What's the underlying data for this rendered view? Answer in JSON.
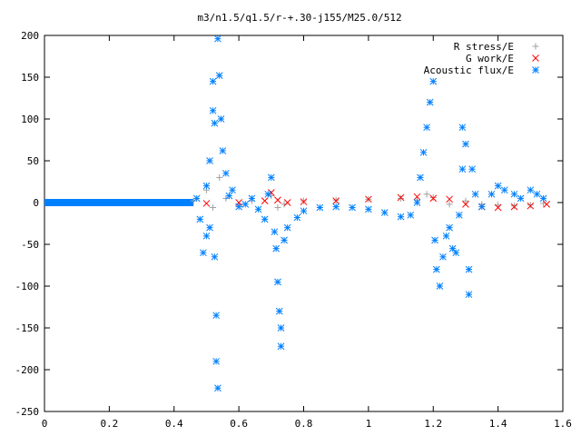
{
  "chart_data": {
    "type": "scatter",
    "title": "m3/n1.5/q1.5/r-+.30-j155/M25.0/512",
    "xlabel": "",
    "ylabel": "",
    "xlim": [
      0,
      1.6
    ],
    "ylim": [
      -250,
      200
    ],
    "grid": false,
    "legend_position": "top-right",
    "x_ticks": [
      "0",
      "0.2",
      "0.4",
      "0.6",
      "0.8",
      "1",
      "1.2",
      "1.4",
      "1.6"
    ],
    "y_ticks": [
      "200",
      "150",
      "100",
      "50",
      "0",
      "-50",
      "-100",
      "-150",
      "-200",
      "-250"
    ],
    "series": [
      {
        "name": "R stress/E",
        "color": "#a0a0a0",
        "marker": "plus",
        "points": [
          [
            0.46,
            2
          ],
          [
            0.5,
            15
          ],
          [
            0.52,
            -6
          ],
          [
            0.54,
            30
          ],
          [
            0.56,
            5
          ],
          [
            0.6,
            -3
          ],
          [
            0.64,
            2
          ],
          [
            0.7,
            8
          ],
          [
            0.72,
            -6
          ],
          [
            0.74,
            -2
          ],
          [
            0.8,
            2
          ],
          [
            0.9,
            3
          ],
          [
            1.0,
            4
          ],
          [
            1.1,
            5
          ],
          [
            1.15,
            3
          ],
          [
            1.18,
            10
          ],
          [
            1.2,
            6
          ],
          [
            1.25,
            -2
          ],
          [
            1.3,
            2
          ],
          [
            1.35,
            -2
          ],
          [
            1.4,
            -3
          ],
          [
            1.45,
            -4
          ],
          [
            1.5,
            -3
          ],
          [
            1.54,
            -1
          ]
        ]
      },
      {
        "name": "G work/E",
        "color": "#ff0000",
        "marker": "cross",
        "points": [
          [
            0.5,
            -1
          ],
          [
            0.6,
            0
          ],
          [
            0.68,
            2
          ],
          [
            0.7,
            12
          ],
          [
            0.72,
            3
          ],
          [
            0.75,
            0
          ],
          [
            0.8,
            1
          ],
          [
            0.9,
            2
          ],
          [
            1.0,
            4
          ],
          [
            1.1,
            6
          ],
          [
            1.15,
            7
          ],
          [
            1.2,
            5
          ],
          [
            1.25,
            4
          ],
          [
            1.3,
            -2
          ],
          [
            1.35,
            -5
          ],
          [
            1.4,
            -6
          ],
          [
            1.45,
            -5
          ],
          [
            1.5,
            -4
          ],
          [
            1.55,
            -2
          ]
        ]
      },
      {
        "name": "Acoustic flux/E",
        "color": "#0080ff",
        "marker": "star",
        "points": [
          [
            0.47,
            5
          ],
          [
            0.48,
            -20
          ],
          [
            0.49,
            -60
          ],
          [
            0.5,
            20
          ],
          [
            0.5,
            -40
          ],
          [
            0.51,
            50
          ],
          [
            0.51,
            -30
          ],
          [
            0.52,
            145
          ],
          [
            0.52,
            110
          ],
          [
            0.525,
            95
          ],
          [
            0.525,
            -65
          ],
          [
            0.53,
            -135
          ],
          [
            0.53,
            -190
          ],
          [
            0.535,
            -222
          ],
          [
            0.535,
            196
          ],
          [
            0.54,
            152
          ],
          [
            0.545,
            100
          ],
          [
            0.55,
            62
          ],
          [
            0.56,
            35
          ],
          [
            0.57,
            8
          ],
          [
            0.58,
            15
          ],
          [
            0.6,
            -5
          ],
          [
            0.62,
            -2
          ],
          [
            0.64,
            5
          ],
          [
            0.66,
            -8
          ],
          [
            0.68,
            -20
          ],
          [
            0.69,
            10
          ],
          [
            0.7,
            30
          ],
          [
            0.71,
            -35
          ],
          [
            0.715,
            -55
          ],
          [
            0.72,
            -95
          ],
          [
            0.725,
            -130
          ],
          [
            0.73,
            -150
          ],
          [
            0.73,
            -172
          ],
          [
            0.74,
            -45
          ],
          [
            0.75,
            -30
          ],
          [
            0.78,
            -18
          ],
          [
            0.8,
            -10
          ],
          [
            0.85,
            -6
          ],
          [
            0.9,
            -5
          ],
          [
            0.95,
            -6
          ],
          [
            1.0,
            -8
          ],
          [
            1.05,
            -12
          ],
          [
            1.1,
            -17
          ],
          [
            1.13,
            -15
          ],
          [
            1.15,
            0
          ],
          [
            1.16,
            30
          ],
          [
            1.17,
            60
          ],
          [
            1.18,
            90
          ],
          [
            1.19,
            120
          ],
          [
            1.2,
            145
          ],
          [
            1.205,
            -45
          ],
          [
            1.21,
            -80
          ],
          [
            1.22,
            -100
          ],
          [
            1.23,
            -65
          ],
          [
            1.24,
            -40
          ],
          [
            1.25,
            -30
          ],
          [
            1.26,
            -55
          ],
          [
            1.27,
            -60
          ],
          [
            1.28,
            -15
          ],
          [
            1.29,
            40
          ],
          [
            1.29,
            90
          ],
          [
            1.3,
            70
          ],
          [
            1.31,
            -110
          ],
          [
            1.31,
            -80
          ],
          [
            1.32,
            40
          ],
          [
            1.33,
            10
          ],
          [
            1.35,
            -5
          ],
          [
            1.38,
            10
          ],
          [
            1.4,
            20
          ],
          [
            1.42,
            15
          ],
          [
            1.45,
            10
          ],
          [
            1.47,
            5
          ],
          [
            1.5,
            15
          ],
          [
            1.52,
            10
          ],
          [
            1.54,
            5
          ]
        ]
      }
    ]
  }
}
